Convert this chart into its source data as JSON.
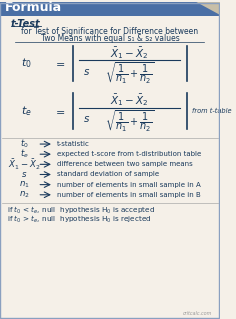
{
  "title": "Formula",
  "subtitle1": "t-Test",
  "subtitle2": "for Test of Significance for Difference between",
  "subtitle3": "Two Means with equal s₁ & s₂ values",
  "bg_color": "#f5f0e8",
  "header_bg": "#4a6fa5",
  "header_text_color": "#ffffff",
  "text_color": "#1a3a5c",
  "formula_color": "#1a3a5c",
  "legend_items": [
    [
      "$t_0$",
      "t-statistic"
    ],
    [
      "$t_e$",
      "expected t-score from t-distribution table"
    ],
    [
      "$\\bar{X}_1 - \\bar{X}_2$",
      "difference between two sample means"
    ],
    [
      "$s$",
      "standard deviation of sample"
    ],
    [
      "$n_1$",
      "number of elements in small sample in A"
    ],
    [
      "$n_2$",
      "number of elements in small sample in B"
    ]
  ],
  "note1": "if $t_0$ < $t_e$, null  hypothesis H$_0$ is accepted",
  "note2": "if $t_0$ > $t_e$, null  hypothesis H$_0$ is rejected"
}
